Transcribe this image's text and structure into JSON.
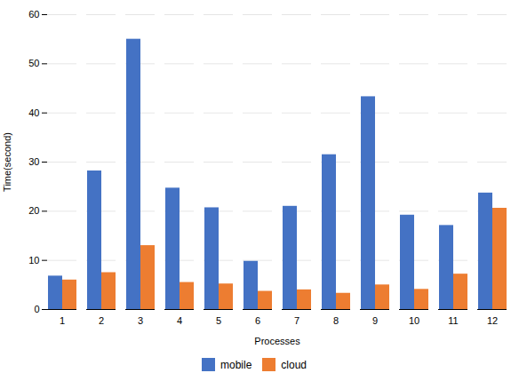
{
  "chart_data": {
    "type": "bar",
    "xlabel": "Processes",
    "ylabel": "Time(second)",
    "categories": [
      1,
      2,
      3,
      4,
      5,
      6,
      7,
      8,
      9,
      10,
      11,
      12
    ],
    "series": [
      {
        "name": "mobile",
        "color": "#4472C4",
        "values": [
          6.8,
          28.2,
          55.0,
          24.7,
          20.7,
          9.8,
          21.0,
          31.5,
          43.3,
          19.2,
          17.1,
          23.7
        ]
      },
      {
        "name": "cloud",
        "color": "#ED7D31",
        "values": [
          6.0,
          7.5,
          13.0,
          5.5,
          5.2,
          3.7,
          4.0,
          3.3,
          5.0,
          4.1,
          7.2,
          20.6
        ]
      }
    ],
    "ylim": [
      0,
      60
    ],
    "yticks": [
      0,
      10,
      20,
      30,
      40,
      50,
      60
    ],
    "grid": true,
    "legend": "bottom"
  }
}
